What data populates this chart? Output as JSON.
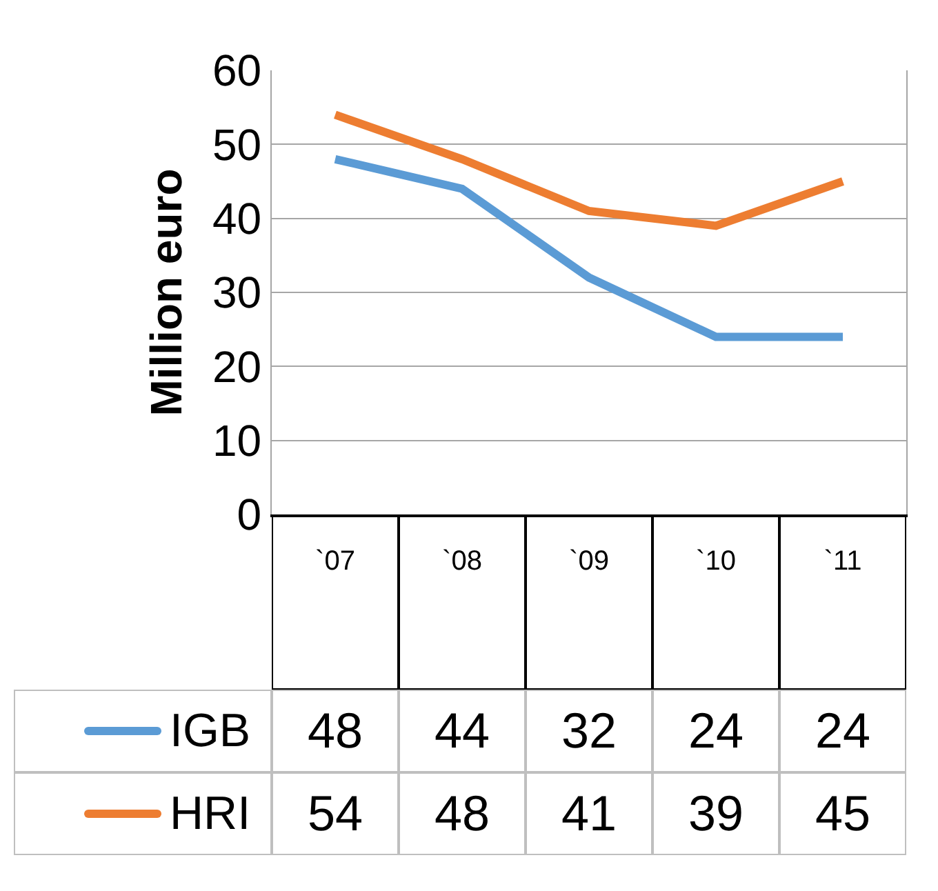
{
  "chart_data": {
    "type": "line",
    "ylabel": "Million euro",
    "categories": [
      "`07",
      "`08",
      "`09",
      "`10",
      "`11"
    ],
    "series": [
      {
        "name": "IGB",
        "color": "#5b9bd5",
        "values": [
          48,
          44,
          32,
          24,
          24
        ]
      },
      {
        "name": "HRI",
        "color": "#ed7d31",
        "values": [
          54,
          48,
          41,
          39,
          45
        ]
      }
    ],
    "ylim": [
      0,
      60
    ],
    "yticks": [
      0,
      10,
      20,
      30,
      40,
      50,
      60
    ],
    "grid": "y",
    "legend": "bottom",
    "data_labels": true,
    "marker": "none",
    "line_style": "solid"
  }
}
